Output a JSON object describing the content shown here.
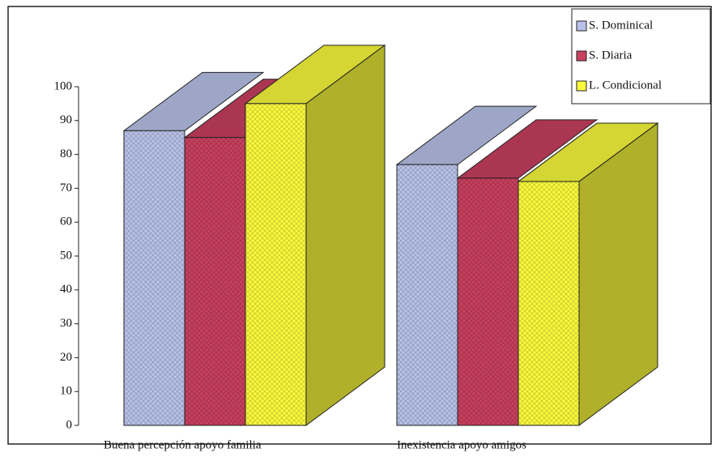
{
  "chart_data": {
    "type": "bar3d",
    "categories": [
      "Buena percepción apoyo familia",
      "Inexistencia apoyo amigos"
    ],
    "series": [
      {
        "name": "S. Dominical",
        "color": "#b9c3ea",
        "values": [
          87,
          77
        ]
      },
      {
        "name": "S. Diaria",
        "color": "#c9405f",
        "values": [
          85,
          73
        ]
      },
      {
        "name": "L. Condicional",
        "color": "#fbfb3c",
        "values": [
          95,
          72
        ]
      }
    ],
    "ylim": [
      0,
      100
    ],
    "yticks": [
      0,
      10,
      20,
      30,
      40,
      50,
      60,
      70,
      80,
      90,
      100
    ],
    "legend": "top-right"
  }
}
